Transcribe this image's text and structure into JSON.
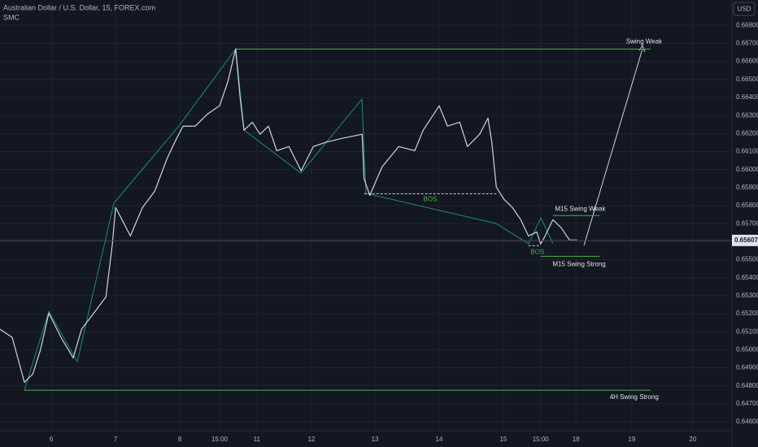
{
  "header": {
    "symbol": "Australian Dollar / U.S. Dollar, 15, FOREX.com",
    "indicator": "SMC",
    "currency": "USD"
  },
  "chart_data": {
    "type": "line",
    "x": [
      -0.8,
      -0.61,
      -0.42,
      -0.29,
      -0.17,
      -0.04,
      0.15,
      0.34,
      0.47,
      0.66,
      0.85,
      0.95,
      1.0,
      1.1,
      1.23,
      1.42,
      1.61,
      1.8,
      1.92,
      2.05,
      2.24,
      2.43,
      2.62,
      2.75,
      2.87,
      2.94,
      3.0,
      3.13,
      3.25,
      3.38,
      3.51,
      3.7,
      3.89,
      4.08,
      4.27,
      4.52,
      4.84,
      4.87,
      4.96,
      5.15,
      5.41,
      5.66,
      5.79,
      6.04,
      6.17,
      6.36,
      6.48,
      6.67,
      6.8,
      6.86,
      6.93,
      7.05,
      7.18,
      7.31,
      7.43,
      7.56,
      7.62,
      7.69,
      7.81,
      7.94,
      8.07,
      8.19
    ],
    "series": [
      {
        "name": "AUDUSD",
        "color": "#d1d4dc",
        "values": [
          0.65114,
          0.65069,
          0.6482,
          0.64865,
          0.65,
          0.65203,
          0.65069,
          0.64955,
          0.65114,
          0.65203,
          0.65294,
          0.65587,
          0.6579,
          0.65722,
          0.65632,
          0.6579,
          0.6588,
          0.6606,
          0.66151,
          0.66241,
          0.66241,
          0.66308,
          0.66354,
          0.66489,
          0.66669,
          0.66399,
          0.66218,
          0.66263,
          0.66196,
          0.66241,
          0.66105,
          0.66128,
          0.65993,
          0.66128,
          0.66151,
          0.66173,
          0.66196,
          0.65948,
          0.65857,
          0.66015,
          0.66128,
          0.66105,
          0.66218,
          0.66354,
          0.66241,
          0.66263,
          0.66128,
          0.66196,
          0.66286,
          0.66151,
          0.65903,
          0.65835,
          0.6579,
          0.65722,
          0.65632,
          0.65654,
          0.65587,
          0.65632,
          0.65722,
          0.65677,
          0.65609,
          0.65609
        ]
      }
    ],
    "last_price": 0.65607,
    "levels": [
      {
        "name": "Swing Weak",
        "value": 0.66669,
        "x0": 2.87,
        "x1": 9.33,
        "color": "#4caf50"
      },
      {
        "name": "4H Swing Strong",
        "value": 0.64776,
        "x0": -0.42,
        "x1": 9.33,
        "color": "#4caf50"
      },
      {
        "name": "M15 Swing Weak",
        "value": 0.65745,
        "x0": 7.81,
        "x1": 8.54,
        "color": "#4caf50"
      },
      {
        "name": "M15 Swing Strong",
        "value": 0.65519,
        "x0": 7.62,
        "x1": 8.54,
        "color": "#4caf50"
      },
      {
        "name": "BOS",
        "value": 0.65866,
        "x0": 4.87,
        "x1": 6.93,
        "color": "#d1d4dc",
        "dashed": true
      },
      {
        "name": "BOS",
        "value": 0.65578,
        "x0": 7.43,
        "x1": 7.62,
        "color": "#d1d4dc",
        "dashed": true
      }
    ],
    "xlim": [
      -0.8,
      10.6
    ],
    "xticks": [
      {
        "value": 0,
        "label": "6"
      },
      {
        "value": 1,
        "label": "7"
      },
      {
        "value": 2,
        "label": "8"
      },
      {
        "value": 2.62,
        "label": "15:00"
      },
      {
        "value": 3.2,
        "label": "11"
      },
      {
        "value": 4.05,
        "label": "12"
      },
      {
        "value": 5.04,
        "label": "13"
      },
      {
        "value": 6.04,
        "label": "14"
      },
      {
        "value": 7.04,
        "label": "15"
      },
      {
        "value": 7.62,
        "label": "15:00"
      },
      {
        "value": 8.17,
        "label": "18"
      },
      {
        "value": 9.04,
        "label": "19"
      },
      {
        "value": 9.99,
        "label": "20"
      }
    ],
    "ylim": [
      0.66941,
      0.64551
    ],
    "yticks": [
      {
        "value": 0.668,
        "label": "0.66800"
      },
      {
        "value": 0.667,
        "label": "0.66700"
      },
      {
        "value": 0.666,
        "label": "0.66600"
      },
      {
        "value": 0.665,
        "label": "0.66500"
      },
      {
        "value": 0.664,
        "label": "0.66400"
      },
      {
        "value": 0.663,
        "label": "0.66300"
      },
      {
        "value": 0.662,
        "label": "0.66200"
      },
      {
        "value": 0.661,
        "label": "0.66100"
      },
      {
        "value": 0.66,
        "label": "0.66000"
      },
      {
        "value": 0.659,
        "label": "0.65900"
      },
      {
        "value": 0.658,
        "label": "0.65800"
      },
      {
        "value": 0.657,
        "label": "0.65700"
      },
      {
        "value": 0.656,
        "label": "0.65600"
      },
      {
        "value": 0.655,
        "label": "0.65500"
      },
      {
        "value": 0.654,
        "label": "0.65400"
      },
      {
        "value": 0.653,
        "label": "0.65300"
      },
      {
        "value": 0.652,
        "label": "0.65200"
      },
      {
        "value": 0.651,
        "label": "0.65100"
      },
      {
        "value": 0.65,
        "label": "0.65000"
      },
      {
        "value": 0.649,
        "label": "0.64900"
      },
      {
        "value": 0.648,
        "label": "0.64800"
      },
      {
        "value": 0.647,
        "label": "0.64700"
      },
      {
        "value": 0.646,
        "label": "0.64600"
      }
    ],
    "grid": true
  }
}
